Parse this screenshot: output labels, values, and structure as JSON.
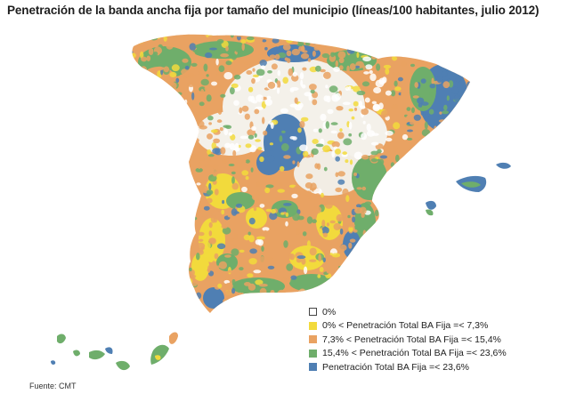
{
  "title": "Penetración de la banda ancha fija por tamaño del municipio (líneas/100 habitantes, julio 2012)",
  "legend": [
    {
      "label": "0%",
      "color": "#ffffff",
      "border": "#444444"
    },
    {
      "label": "0% < Penetración Total BA Fija =< 7,3%",
      "color": "#f2da3c",
      "border": "#f2da3c"
    },
    {
      "label": "7,3% < Penetración Total BA Fija =< 15,4%",
      "color": "#e9a262",
      "border": "#e9a262"
    },
    {
      "label": "15,4% < Penetración Total BA Fija =< 23,6%",
      "color": "#6fae6b",
      "border": "#6fae6b"
    },
    {
      "label": "Penetración Total BA Fija =< 23,6%",
      "color": "#4f7fb3",
      "border": "#4f7fb3"
    }
  ],
  "source": "Fuente: CMT",
  "colors": {
    "none": "#ffffff",
    "low": "#f2da3c",
    "medium": "#e9a262",
    "high": "#6fae6b",
    "top": "#4f7fb3"
  }
}
